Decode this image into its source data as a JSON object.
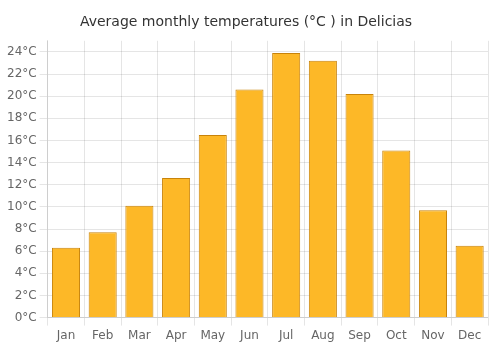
{
  "chart_data": {
    "type": "bar",
    "title": "Average monthly temperatures (°C ) in Delicias",
    "categories": [
      "Jan",
      "Feb",
      "Mar",
      "Apr",
      "May",
      "Jun",
      "Jul",
      "Aug",
      "Sep",
      "Oct",
      "Nov",
      "Dec"
    ],
    "values": [
      6.3,
      7.7,
      10.1,
      12.6,
      16.5,
      20.6,
      23.9,
      23.2,
      20.2,
      15.1,
      9.7,
      6.5
    ],
    "color": "#FDB827",
    "ylim": [
      0,
      25
    ],
    "yticks": [
      {
        "value": 0,
        "label": "0°C"
      },
      {
        "value": 2,
        "label": "2°C"
      },
      {
        "value": 4,
        "label": "4°C"
      },
      {
        "value": 6,
        "label": "6°C"
      },
      {
        "value": 8,
        "label": "8°C"
      },
      {
        "value": 10,
        "label": "10°C"
      },
      {
        "value": 12,
        "label": "12°C"
      },
      {
        "value": 14,
        "label": "14°C"
      },
      {
        "value": 16,
        "label": "16°C"
      },
      {
        "value": 18,
        "label": "18°C"
      },
      {
        "value": 20,
        "label": "20°C"
      },
      {
        "value": 22,
        "label": "22°C"
      },
      {
        "value": 24,
        "label": "24°C"
      }
    ],
    "grid": true
  }
}
